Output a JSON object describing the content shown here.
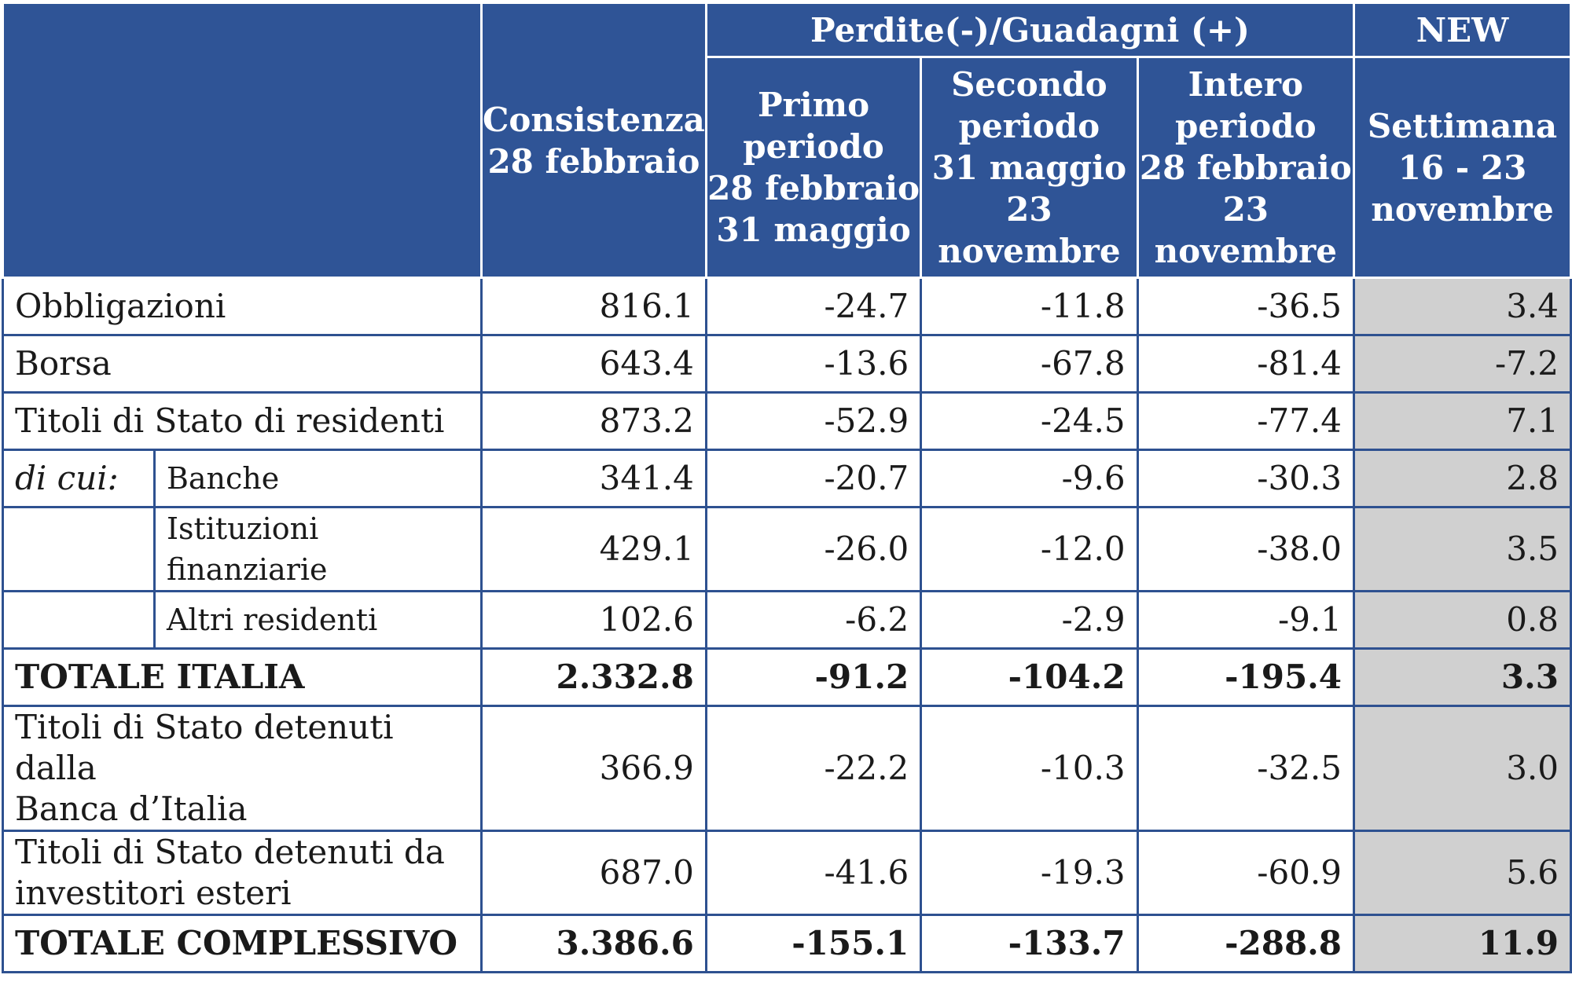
{
  "header": {
    "col_consistenza": "Consistenza\n28 febbraio",
    "group_perdite": "Perdite(-)/Guadagni (+)",
    "group_new": "NEW",
    "col_primo": "Primo\nperiodo\n28 febbraio\n31 maggio",
    "col_secondo": "Secondo\nperiodo\n31 maggio\n23\nnovembre",
    "col_intero": "Intero\nperiodo\n28 febbraio\n23\nnovembre",
    "col_settimana": "Settimana\n16 - 23\nnovembre"
  },
  "rows": [
    {
      "label": "Obbligazioni",
      "values": [
        "816.1",
        "-24.7",
        "-11.8",
        "-36.5",
        "3.4"
      ]
    },
    {
      "label": "Borsa",
      "values": [
        "643.4",
        "-13.6",
        "-67.8",
        "-81.4",
        "-7.2"
      ]
    },
    {
      "label": "Titoli di Stato di residenti",
      "values": [
        "873.2",
        "-52.9",
        "-24.5",
        "-77.4",
        "7.1"
      ]
    }
  ],
  "dicui_label": "di cui:",
  "subrows": [
    {
      "label": "Banche",
      "values": [
        "341.4",
        "-20.7",
        "-9.6",
        "-30.3",
        "2.8"
      ]
    },
    {
      "label": "Istituzioni finanziarie",
      "values": [
        "429.1",
        "-26.0",
        "-12.0",
        "-38.0",
        "3.5"
      ]
    },
    {
      "label": "Altri residenti",
      "values": [
        "102.6",
        "-6.2",
        "-2.9",
        "-9.1",
        "0.8"
      ]
    }
  ],
  "totale_italia": {
    "label": "TOTALE ITALIA",
    "values": [
      "2.332.8",
      "-91.2",
      "-104.2",
      "-195.4",
      "3.3"
    ]
  },
  "bdi": {
    "label": "Titoli di Stato detenuti dalla\nBanca d’Italia",
    "values": [
      "366.9",
      "-22.2",
      "-10.3",
      "-32.5",
      "3.0"
    ]
  },
  "esteri": {
    "label": "Titoli di Stato detenuti da\ninvestitori esteri",
    "values": [
      "687.0",
      "-41.6",
      "-19.3",
      "-60.9",
      "5.6"
    ]
  },
  "totale_complessivo": {
    "label": "TOTALE COMPLESSIVO",
    "values": [
      "3.386.6",
      "-155.1",
      "-133.7",
      "-288.8",
      "11.9"
    ]
  },
  "colors": {
    "header_bg": "#2f5496",
    "border": "#2e5190",
    "new_col_bg": "#d0d0d0"
  }
}
